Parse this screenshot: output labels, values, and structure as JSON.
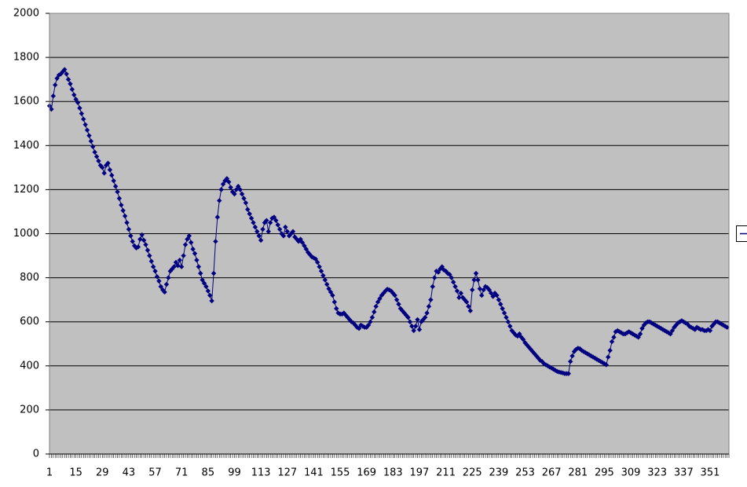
{
  "chart_data": {
    "type": "line",
    "color": "#000080",
    "marker": "diamond",
    "grid": true,
    "ylim": [
      0,
      2000
    ],
    "yticks": [
      0,
      200,
      400,
      600,
      800,
      1000,
      1200,
      1400,
      1600,
      1800,
      2000
    ],
    "categories": [
      "1",
      null,
      null,
      null,
      null,
      null,
      null,
      null,
      null,
      null,
      null,
      null,
      null,
      null,
      "15",
      null,
      null,
      null,
      null,
      null,
      null,
      null,
      null,
      null,
      null,
      null,
      null,
      null,
      "29",
      null,
      null,
      null,
      null,
      null,
      null,
      null,
      null,
      null,
      null,
      null,
      null,
      null,
      "43",
      null,
      null,
      null,
      null,
      null,
      null,
      null,
      null,
      null,
      null,
      null,
      null,
      null,
      "57",
      null,
      null,
      null,
      null,
      null,
      null,
      null,
      null,
      null,
      null,
      null,
      null,
      null,
      "71",
      null,
      null,
      null,
      null,
      null,
      null,
      null,
      null,
      null,
      null,
      null,
      null,
      null,
      "85",
      null,
      null,
      null,
      null,
      null,
      null,
      null,
      null,
      null,
      null,
      null,
      null,
      null,
      "99",
      null,
      null,
      null,
      null,
      null,
      null,
      null,
      null,
      null,
      null,
      null,
      null,
      null,
      "113",
      null,
      null,
      null,
      null,
      null,
      null,
      null,
      null,
      null,
      null,
      null,
      null,
      null,
      "127",
      null,
      null,
      null,
      null,
      null,
      null,
      null,
      null,
      null,
      null,
      null,
      null,
      null,
      "141",
      null,
      null,
      null,
      null,
      null,
      null,
      null,
      null,
      null,
      null,
      null,
      null,
      null,
      "155",
      null,
      null,
      null,
      null,
      null,
      null,
      null,
      null,
      null,
      null,
      null,
      null,
      null,
      "169",
      null,
      null,
      null,
      null,
      null,
      null,
      null,
      null,
      null,
      null,
      null,
      null,
      null,
      "183",
      null,
      null,
      null,
      null,
      null,
      null,
      null,
      null,
      null,
      null,
      null,
      null,
      null,
      "197",
      null,
      null,
      null,
      null,
      null,
      null,
      null,
      null,
      null,
      null,
      null,
      null,
      null,
      "211",
      null,
      null,
      null,
      null,
      null,
      null,
      null,
      null,
      null,
      null,
      null,
      null,
      null,
      "225",
      null,
      null,
      null,
      null,
      null,
      null,
      null,
      null,
      null,
      null,
      null,
      null,
      null,
      "239",
      null,
      null,
      null,
      null,
      null,
      null,
      null,
      null,
      null,
      null,
      null,
      null,
      null,
      "253",
      null,
      null,
      null,
      null,
      null,
      null,
      null,
      null,
      null,
      null,
      null,
      null,
      null,
      "267",
      null,
      null,
      null,
      null,
      null,
      null,
      null,
      null,
      null,
      null,
      null,
      null,
      null,
      "281",
      null,
      null,
      null,
      null,
      null,
      null,
      null,
      null,
      null,
      null,
      null,
      null,
      null,
      "295",
      null,
      null,
      null,
      null,
      null,
      null,
      null,
      null,
      null,
      null,
      null,
      null,
      null,
      "309",
      null,
      null,
      null,
      null,
      null,
      null,
      null,
      null,
      null,
      null,
      null,
      null,
      null,
      "323",
      null,
      null,
      null,
      null,
      null,
      null,
      null,
      null,
      null,
      null,
      null,
      null,
      null,
      "337",
      null,
      null,
      null,
      null,
      null,
      null,
      null,
      null,
      null,
      null,
      null,
      null,
      null,
      "351",
      null,
      null,
      null,
      null,
      null,
      null,
      null,
      null,
      null
    ],
    "values": [
      1580,
      1565,
      1625,
      1675,
      1705,
      1720,
      1725,
      1735,
      1745,
      1725,
      1700,
      1680,
      1655,
      1630,
      1610,
      1595,
      1570,
      1545,
      1520,
      1495,
      1470,
      1445,
      1420,
      1395,
      1370,
      1350,
      1330,
      1310,
      1300,
      1275,
      1310,
      1320,
      1290,
      1265,
      1240,
      1215,
      1190,
      1160,
      1130,
      1105,
      1080,
      1050,
      1020,
      990,
      965,
      945,
      935,
      940,
      975,
      995,
      970,
      950,
      925,
      900,
      875,
      850,
      830,
      805,
      785,
      760,
      745,
      735,
      770,
      800,
      830,
      840,
      850,
      870,
      855,
      880,
      850,
      900,
      950,
      975,
      990,
      960,
      930,
      910,
      880,
      850,
      820,
      790,
      775,
      760,
      740,
      720,
      695,
      820,
      965,
      1075,
      1150,
      1200,
      1225,
      1240,
      1250,
      1235,
      1210,
      1190,
      1180,
      1200,
      1215,
      1200,
      1180,
      1160,
      1140,
      1110,
      1090,
      1070,
      1050,
      1030,
      1010,
      990,
      970,
      1020,
      1050,
      1060,
      1010,
      1050,
      1070,
      1075,
      1060,
      1040,
      1020,
      1000,
      990,
      1030,
      1010,
      990,
      1000,
      1010,
      985,
      975,
      965,
      975,
      960,
      945,
      930,
      915,
      905,
      895,
      890,
      885,
      870,
      850,
      830,
      810,
      790,
      770,
      750,
      735,
      720,
      690,
      660,
      640,
      635,
      635,
      640,
      630,
      620,
      610,
      600,
      595,
      585,
      575,
      570,
      585,
      580,
      575,
      575,
      585,
      600,
      620,
      645,
      670,
      690,
      705,
      720,
      730,
      740,
      748,
      745,
      740,
      730,
      720,
      700,
      680,
      660,
      650,
      640,
      630,
      620,
      600,
      580,
      560,
      580,
      610,
      565,
      600,
      610,
      620,
      640,
      670,
      700,
      760,
      800,
      830,
      825,
      840,
      850,
      835,
      830,
      820,
      815,
      800,
      780,
      760,
      740,
      710,
      730,
      710,
      700,
      690,
      670,
      650,
      745,
      790,
      820,
      790,
      750,
      720,
      745,
      760,
      755,
      745,
      730,
      715,
      730,
      720,
      700,
      680,
      660,
      640,
      620,
      600,
      580,
      560,
      550,
      540,
      535,
      545,
      530,
      520,
      505,
      495,
      485,
      475,
      465,
      455,
      445,
      435,
      425,
      420,
      410,
      405,
      400,
      395,
      390,
      385,
      380,
      375,
      372,
      370,
      368,
      365,
      365,
      365,
      420,
      445,
      465,
      475,
      480,
      478,
      470,
      465,
      460,
      455,
      450,
      445,
      440,
      435,
      430,
      425,
      420,
      415,
      410,
      405,
      440,
      470,
      510,
      530,
      555,
      560,
      555,
      550,
      545,
      545,
      550,
      555,
      550,
      545,
      540,
      535,
      530,
      545,
      570,
      585,
      595,
      600,
      600,
      595,
      590,
      585,
      580,
      575,
      570,
      565,
      560,
      555,
      550,
      545,
      560,
      575,
      585,
      595,
      600,
      605,
      600,
      595,
      590,
      580,
      575,
      570,
      565,
      575,
      570,
      565,
      565,
      560,
      560,
      565,
      560,
      580,
      590,
      600,
      600,
      595,
      590,
      585,
      580,
      575
    ]
  }
}
